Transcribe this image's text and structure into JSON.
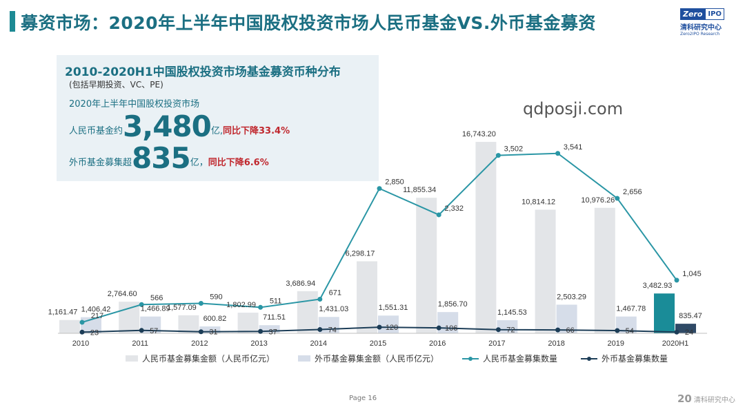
{
  "header": {
    "title": "募资市场：2020年上半年中国股权投资市场人民币基金VS.外币基金募资",
    "logo_zero": "Zero",
    "logo_ipo": "IPO",
    "logo_cn": "清科研究中心",
    "logo_en": "Zero2IPO Research"
  },
  "info_box": {
    "title": "2010-2020H1中国股权投资市场基金募资币种分布",
    "subtitle": "(包括早期投资、VC、PE)",
    "market": "2020年上半年中国股权投资市场",
    "rmb_label": "人民币基金约",
    "rmb_value": "3,480",
    "rmb_unit": "亿,",
    "rmb_yoy": "同比下降33.4%",
    "fx_label": "外币基金募集超",
    "fx_value": "835",
    "fx_unit": "亿，",
    "fx_yoy": "同比下降6.6%"
  },
  "watermark": "qdposji.com",
  "footer": {
    "page": "Page  16",
    "logo_mark": "20",
    "logo_text": "清科研究中心"
  },
  "colors": {
    "rmb_bar": "#e3e5e8",
    "fx_bar": "#d6dde9",
    "rmb_line": "#2a96a5",
    "fx_line": "#1c3d57",
    "highlight_rmb_bar": "#1a8c98",
    "highlight_fx_bar": "#2f4a66"
  },
  "chart_data": {
    "type": "bar",
    "categories": [
      "2010",
      "2011",
      "2012",
      "2013",
      "2014",
      "2015",
      "2016",
      "2017",
      "2018",
      "2019",
      "2020H1"
    ],
    "series": [
      {
        "name": "人民币基金募集金额（人民币亿元）",
        "type": "bar",
        "values": [
          1161.47,
          2764.6,
          1577.09,
          1802.99,
          3686.94,
          6298.17,
          11855.34,
          16743.2,
          10814.12,
          10976.26,
          3482.93
        ],
        "labels": [
          "1,161.47",
          "2,764.60",
          "1,577.09",
          "1,802.99",
          "3,686.94",
          "6,298.17",
          "11,855.34",
          "16,743.20",
          "10,814.12",
          "10,976.26",
          "3,482.93"
        ]
      },
      {
        "name": "外币基金募集金额（人民币亿元）",
        "type": "bar",
        "values": [
          1406.42,
          1466.89,
          600.82,
          711.51,
          1431.03,
          1551.31,
          1856.7,
          1145.53,
          2503.29,
          1467.78,
          835.47
        ],
        "labels": [
          "1,406.42",
          "1,466.89",
          "600.82",
          "711.51",
          "1,431.03",
          "1,551.31",
          "1,856.70",
          "1,145.53",
          "2,503.29",
          "1,467.78",
          "835.47"
        ]
      },
      {
        "name": "人民币基金募集数量",
        "type": "line",
        "values": [
          217,
          566,
          590,
          511,
          671,
          2850,
          2332,
          3502,
          3541,
          2656,
          1045
        ],
        "labels": [
          "217",
          "566",
          "590",
          "511",
          "671",
          "2,850",
          "2,332",
          "3,502",
          "3,541",
          "2,656",
          "1,045"
        ]
      },
      {
        "name": "外币基金募集数量",
        "type": "line",
        "values": [
          23,
          57,
          31,
          37,
          74,
          120,
          106,
          72,
          66,
          54,
          24
        ],
        "labels": [
          "23",
          "57",
          "31",
          "37",
          "74",
          "120",
          "106",
          "72",
          "66",
          "54",
          "24"
        ]
      }
    ],
    "highlight_category": "2020H1",
    "bar_axis_range": [
      0,
      20000
    ],
    "line_axis_range": [
      0,
      4500
    ],
    "grid": false,
    "legend_position": "bottom"
  }
}
